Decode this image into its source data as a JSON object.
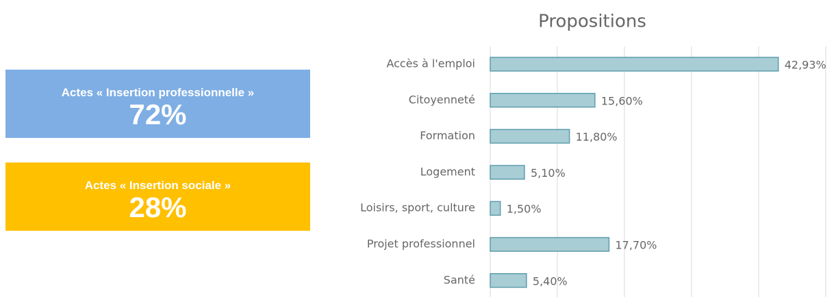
{
  "panels": [
    {
      "label": "Actes « Insertion professionnelle »",
      "value": "72%",
      "color": "#7eaee4"
    },
    {
      "label": "Actes « Insertion sociale »",
      "value": "28%",
      "color": "#ffc000"
    }
  ],
  "chart_data": {
    "type": "bar",
    "orientation": "horizontal",
    "title": "Propositions",
    "categories": [
      "Accès à l'emploi",
      "Citoyenneté",
      "Formation",
      "Logement",
      "Loisirs, sport, culture",
      "Projet professionnel",
      "Santé"
    ],
    "values": [
      42.93,
      15.6,
      11.8,
      5.1,
      1.5,
      17.7,
      5.4
    ],
    "value_labels": [
      "42,93%",
      "15,60%",
      "11,80%",
      "5,10%",
      "1,50%",
      "17,70%",
      "5,40%"
    ],
    "color": "#a8cdd4",
    "xlim": [
      0,
      50
    ],
    "xticks": [
      0,
      10,
      20,
      30,
      40,
      50
    ],
    "grid": true
  }
}
